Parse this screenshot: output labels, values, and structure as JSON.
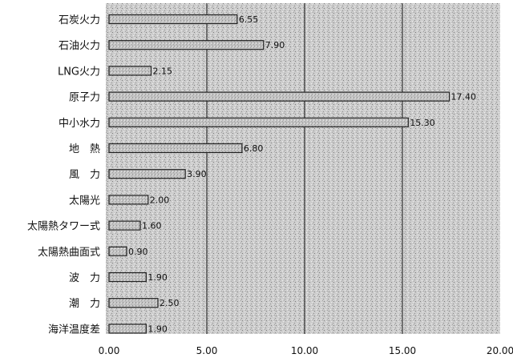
{
  "chart_data": {
    "type": "bar",
    "orientation": "horizontal",
    "categories": [
      "石炭火力",
      "石油火力",
      "LNG火力",
      "原子力",
      "中小水力",
      "地　熱",
      "風　力",
      "太陽光",
      "太陽熱タワー式",
      "太陽熱曲面式",
      "波　力",
      "潮　力",
      "海洋温度差"
    ],
    "values": [
      6.55,
      7.9,
      2.15,
      17.4,
      15.3,
      6.8,
      3.9,
      2.0,
      1.6,
      0.9,
      1.9,
      2.5,
      1.9
    ],
    "value_labels": [
      "6.55",
      "7.90",
      "2.15",
      "17.40",
      "15.30",
      "6.80",
      "3.90",
      "2.00",
      "1.60",
      "0.90",
      "1.90",
      "2.50",
      "1.90"
    ],
    "title": "",
    "xlabel": "",
    "ylabel": "",
    "xlim": [
      0,
      20
    ],
    "xticks": [
      "0.00",
      "5.00",
      "10.00",
      "15.00",
      "20.00"
    ],
    "grid": "vertical",
    "legend": "none",
    "colors": {
      "plot_bg": "#cfcfcf",
      "bar_fill": "#bdbdbd",
      "bar_stroke": "#222222",
      "grid": "#111111"
    }
  }
}
